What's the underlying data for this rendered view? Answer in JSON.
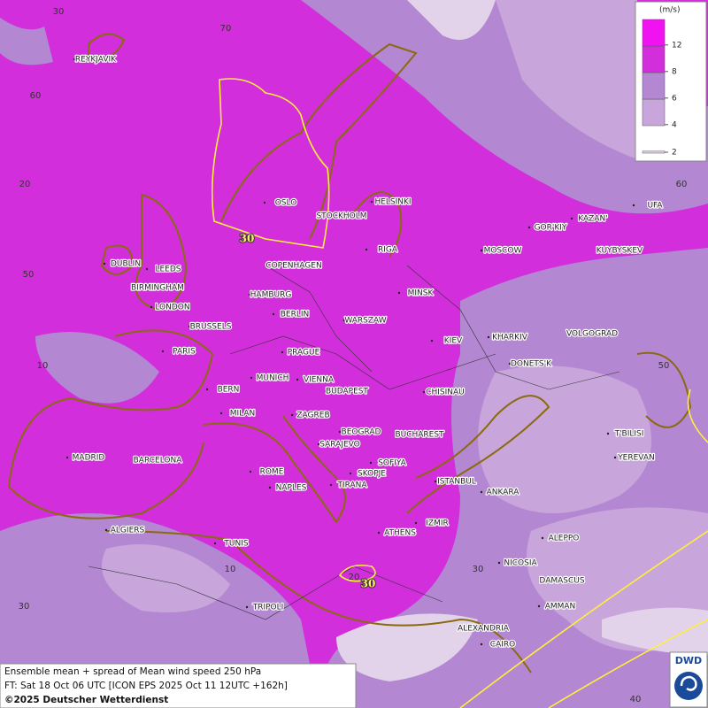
{
  "legend": {
    "unit": "(m/s)",
    "levels": [
      2,
      4,
      6,
      8,
      12
    ],
    "colors": [
      "#e2d2ea",
      "#c8a6dc",
      "#b487d2",
      "#d22edc",
      "#f012f0"
    ]
  },
  "cities": [
    "REYKJAVIK",
    "OSLO",
    "STOCKHOLM",
    "HELSINKI",
    "DUBLIN",
    "LEEDS",
    "COPENHAGEN",
    "RIGA",
    "MOSCOW",
    "GOR'KIY",
    "KAZAN'",
    "UFA",
    "KUYBYSKEV",
    "BIRMINGHAM",
    "HAMBURG",
    "MINSK",
    "LONDON",
    "BERLIN",
    "WARSZAW",
    "BRUSSELS",
    "KIEV",
    "KHARKIV",
    "VOLGOGRAD",
    "PARIS",
    "PRAGUE",
    "DONETS'K",
    "MUNICH",
    "VIENNA",
    "BERN",
    "BUDAPEST",
    "CHISINAU",
    "MILAN",
    "ZAGREB",
    "BEOGRAD",
    "BUCHAREST",
    "T'BILISI",
    "MADRID",
    "BARCELONA",
    "SARAJEVO",
    "SOFIYA",
    "YEREVAN",
    "ROME",
    "SKOPJE",
    "ISTANBUL",
    "NAPLES",
    "TIRANA",
    "ANKARA",
    "ALGIERS",
    "ATHENS",
    "IZMIR",
    "ALEPPO",
    "TUNIS",
    "NICOSIA",
    "DAMASCUS",
    "AMMAN",
    "TRIPOLI",
    "ALEXANDRIA",
    "CAIRO"
  ],
  "grid_labels": [
    "30",
    "70",
    "60",
    "20",
    "50",
    "10",
    "30",
    "60",
    "50",
    "10",
    "20",
    "30",
    "40"
  ],
  "contour_labels": [
    "30",
    "30"
  ],
  "info": {
    "line1": "Ensemble mean + spread of Mean wind speed 250 hPa",
    "line2": "FT: Sat 18 Oct 06 UTC [ICON EPS 2025 Oct 11 12UTC +162h]",
    "line3": "©2025 Deutscher Wetterdienst"
  },
  "logo": "DWD"
}
